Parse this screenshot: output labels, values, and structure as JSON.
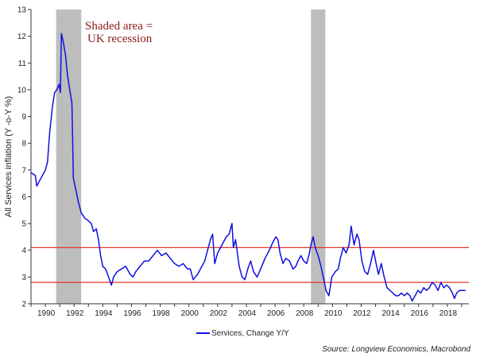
{
  "chart_data": {
    "type": "line",
    "ylabel": "All Services inflation (Y -o-Y %)",
    "ylim": [
      2,
      13
    ],
    "yticks": [
      "2",
      "3",
      "4",
      "5",
      "6",
      "7",
      "8",
      "9",
      "10",
      "11",
      "12",
      "13"
    ],
    "xlim": [
      1989.0,
      2019.5
    ],
    "xticks": [
      "1990",
      "1992",
      "1994",
      "1996",
      "1998",
      "2000",
      "2002",
      "2004",
      "2006",
      "2008",
      "2010",
      "2012",
      "2014",
      "2016",
      "2018"
    ],
    "grid": false,
    "legend_position": "bottom-center",
    "annotation": [
      "Shaded area =",
      "UK recession"
    ],
    "source": "Source: Longview Economics, Macrobond",
    "recessions": [
      {
        "start": 1990.75,
        "end": 1992.5
      },
      {
        "start": 2008.5,
        "end": 2009.5
      }
    ],
    "reference_lines": [
      {
        "y": 4.1,
        "color": "#e8382d"
      },
      {
        "y": 2.8,
        "color": "#e8382d"
      }
    ],
    "series": [
      {
        "name": "Services, Change Y/Y",
        "color": "#1010e0",
        "points": [
          [
            1989.0,
            6.9
          ],
          [
            1989.3,
            6.8
          ],
          [
            1989.4,
            6.4
          ],
          [
            1989.6,
            6.6
          ],
          [
            1989.8,
            6.8
          ],
          [
            1990.0,
            7.0
          ],
          [
            1990.15,
            7.3
          ],
          [
            1990.3,
            8.4
          ],
          [
            1990.5,
            9.4
          ],
          [
            1990.65,
            9.9
          ],
          [
            1990.8,
            10.0
          ],
          [
            1990.95,
            10.2
          ],
          [
            1991.05,
            9.9
          ],
          [
            1991.12,
            12.1
          ],
          [
            1991.25,
            11.8
          ],
          [
            1991.4,
            11.3
          ],
          [
            1991.55,
            10.5
          ],
          [
            1991.7,
            10.0
          ],
          [
            1991.85,
            9.5
          ],
          [
            1991.95,
            6.7
          ],
          [
            1992.15,
            6.2
          ],
          [
            1992.3,
            5.8
          ],
          [
            1992.5,
            5.4
          ],
          [
            1992.75,
            5.2
          ],
          [
            1993.0,
            5.1
          ],
          [
            1993.2,
            5.0
          ],
          [
            1993.35,
            4.7
          ],
          [
            1993.55,
            4.8
          ],
          [
            1993.7,
            4.4
          ],
          [
            1993.85,
            3.8
          ],
          [
            1994.0,
            3.4
          ],
          [
            1994.2,
            3.3
          ],
          [
            1994.4,
            3.0
          ],
          [
            1994.6,
            2.7
          ],
          [
            1994.75,
            3.0
          ],
          [
            1995.0,
            3.2
          ],
          [
            1995.3,
            3.3
          ],
          [
            1995.6,
            3.4
          ],
          [
            1995.9,
            3.1
          ],
          [
            1996.1,
            3.0
          ],
          [
            1996.3,
            3.2
          ],
          [
            1996.6,
            3.4
          ],
          [
            1996.9,
            3.6
          ],
          [
            1997.2,
            3.6
          ],
          [
            1997.5,
            3.8
          ],
          [
            1997.8,
            4.0
          ],
          [
            1998.1,
            3.8
          ],
          [
            1998.4,
            3.9
          ],
          [
            1998.7,
            3.7
          ],
          [
            1999.0,
            3.5
          ],
          [
            1999.3,
            3.4
          ],
          [
            1999.6,
            3.5
          ],
          [
            1999.9,
            3.3
          ],
          [
            2000.1,
            3.3
          ],
          [
            2000.3,
            2.9
          ],
          [
            2000.6,
            3.1
          ],
          [
            2000.9,
            3.4
          ],
          [
            2001.1,
            3.6
          ],
          [
            2001.3,
            4.0
          ],
          [
            2001.5,
            4.4
          ],
          [
            2001.65,
            4.6
          ],
          [
            2001.8,
            3.5
          ],
          [
            2002.0,
            3.9
          ],
          [
            2002.2,
            4.1
          ],
          [
            2002.4,
            4.3
          ],
          [
            2002.6,
            4.5
          ],
          [
            2002.8,
            4.6
          ],
          [
            2003.0,
            5.0
          ],
          [
            2003.1,
            4.1
          ],
          [
            2003.25,
            4.4
          ],
          [
            2003.5,
            3.4
          ],
          [
            2003.7,
            3.0
          ],
          [
            2003.9,
            2.9
          ],
          [
            2004.1,
            3.3
          ],
          [
            2004.3,
            3.6
          ],
          [
            2004.5,
            3.2
          ],
          [
            2004.75,
            3.0
          ],
          [
            2005.0,
            3.3
          ],
          [
            2005.3,
            3.7
          ],
          [
            2005.6,
            4.0
          ],
          [
            2005.85,
            4.3
          ],
          [
            2006.05,
            4.5
          ],
          [
            2006.2,
            4.4
          ],
          [
            2006.35,
            3.9
          ],
          [
            2006.55,
            3.5
          ],
          [
            2006.75,
            3.7
          ],
          [
            2007.0,
            3.6
          ],
          [
            2007.25,
            3.3
          ],
          [
            2007.45,
            3.4
          ],
          [
            2007.6,
            3.6
          ],
          [
            2007.8,
            3.8
          ],
          [
            2008.0,
            3.6
          ],
          [
            2008.2,
            3.5
          ],
          [
            2008.35,
            3.8
          ],
          [
            2008.5,
            4.2
          ],
          [
            2008.65,
            4.5
          ],
          [
            2008.8,
            4.1
          ],
          [
            2009.0,
            3.8
          ],
          [
            2009.2,
            3.4
          ],
          [
            2009.4,
            2.9
          ],
          [
            2009.55,
            2.5
          ],
          [
            2009.75,
            2.3
          ],
          [
            2009.95,
            3.0
          ],
          [
            2010.2,
            3.2
          ],
          [
            2010.4,
            3.3
          ],
          [
            2010.55,
            3.7
          ],
          [
            2010.75,
            4.1
          ],
          [
            2010.95,
            3.9
          ],
          [
            2011.15,
            4.2
          ],
          [
            2011.3,
            4.9
          ],
          [
            2011.5,
            4.2
          ],
          [
            2011.7,
            4.6
          ],
          [
            2011.85,
            4.4
          ],
          [
            2012.05,
            3.6
          ],
          [
            2012.25,
            3.2
          ],
          [
            2012.45,
            3.1
          ],
          [
            2012.65,
            3.5
          ],
          [
            2012.85,
            4.0
          ],
          [
            2013.0,
            3.6
          ],
          [
            2013.2,
            3.1
          ],
          [
            2013.4,
            3.5
          ],
          [
            2013.6,
            3.0
          ],
          [
            2013.8,
            2.6
          ],
          [
            2014.0,
            2.5
          ],
          [
            2014.2,
            2.4
          ],
          [
            2014.4,
            2.3
          ],
          [
            2014.6,
            2.3
          ],
          [
            2014.8,
            2.4
          ],
          [
            2015.0,
            2.3
          ],
          [
            2015.2,
            2.4
          ],
          [
            2015.4,
            2.3
          ],
          [
            2015.55,
            2.1
          ],
          [
            2015.75,
            2.3
          ],
          [
            2015.95,
            2.5
          ],
          [
            2016.15,
            2.4
          ],
          [
            2016.35,
            2.6
          ],
          [
            2016.55,
            2.5
          ],
          [
            2016.75,
            2.6
          ],
          [
            2016.95,
            2.8
          ],
          [
            2017.15,
            2.7
          ],
          [
            2017.35,
            2.5
          ],
          [
            2017.55,
            2.8
          ],
          [
            2017.75,
            2.6
          ],
          [
            2017.95,
            2.7
          ],
          [
            2018.15,
            2.6
          ],
          [
            2018.35,
            2.4
          ],
          [
            2018.5,
            2.2
          ],
          [
            2018.65,
            2.4
          ],
          [
            2018.85,
            2.5
          ],
          [
            2019.05,
            2.5
          ],
          [
            2019.25,
            2.5
          ]
        ]
      }
    ]
  }
}
